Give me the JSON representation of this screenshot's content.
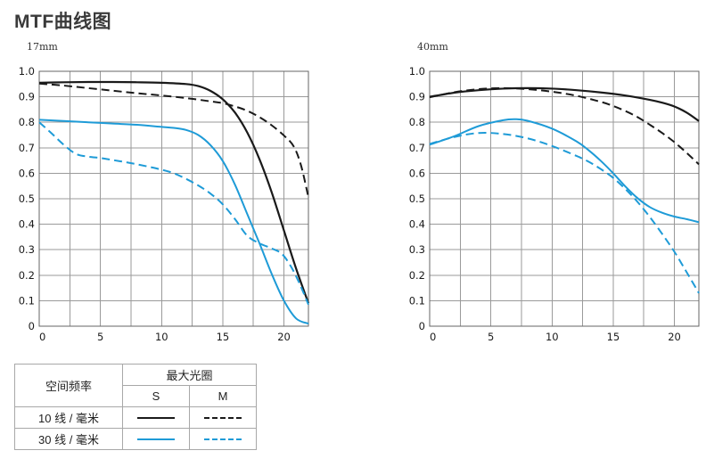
{
  "page": {
    "title": "MTF曲线图"
  },
  "colors": {
    "black": "#1a1a1a",
    "blue": "#1e9bd7",
    "grid": "#9a9a9a",
    "axis": "#666666"
  },
  "legend": {
    "col_header": "空间频率",
    "group_header": "最大光圈",
    "sub_headers": [
      "S",
      "M"
    ],
    "rows": [
      {
        "label": "10 线 / 毫米",
        "color": "#1a1a1a",
        "styles": [
          "solid",
          "dashed"
        ]
      },
      {
        "label": "30 线 / 毫米",
        "color": "#1e9bd7",
        "styles": [
          "solid",
          "dashed"
        ]
      }
    ]
  },
  "chart_data": [
    {
      "type": "line",
      "title": "17mm",
      "xlabel": "",
      "ylabel": "",
      "xlim": [
        0,
        22
      ],
      "ylim": [
        0,
        1.0
      ],
      "x_grid_step": 2.5,
      "y_grid_step": 0.1,
      "grid": true,
      "x_ticks": [
        0,
        5,
        10,
        15,
        20
      ],
      "x_tick_labels": [
        "0",
        "5",
        "10",
        "15",
        "20"
      ],
      "y_tick_labels": [
        "0",
        "0.1",
        "0.2",
        "0.3",
        "0.4",
        "0.5",
        "0.6",
        "0.7",
        "0.8",
        "0.9",
        "1.0"
      ],
      "series": [
        {
          "id": "s10",
          "name": "10线/毫米 S",
          "color": "#1a1a1a",
          "dash": false,
          "width": 2.2,
          "points": [
            [
              0,
              0.955
            ],
            [
              2,
              0.957
            ],
            [
              4,
              0.958
            ],
            [
              6,
              0.958
            ],
            [
              8,
              0.957
            ],
            [
              10,
              0.955
            ],
            [
              12,
              0.95
            ],
            [
              13,
              0.942
            ],
            [
              14,
              0.923
            ],
            [
              15,
              0.89
            ],
            [
              16,
              0.838
            ],
            [
              17,
              0.76
            ],
            [
              18,
              0.655
            ],
            [
              19,
              0.525
            ],
            [
              20,
              0.375
            ],
            [
              21,
              0.225
            ],
            [
              22,
              0.09
            ]
          ]
        },
        {
          "id": "m10",
          "name": "10线/毫米 M",
          "color": "#1a1a1a",
          "dash": true,
          "width": 2,
          "points": [
            [
              0,
              0.952
            ],
            [
              2,
              0.944
            ],
            [
              4,
              0.934
            ],
            [
              6,
              0.924
            ],
            [
              8,
              0.914
            ],
            [
              10,
              0.905
            ],
            [
              12,
              0.895
            ],
            [
              14,
              0.882
            ],
            [
              15,
              0.875
            ],
            [
              16,
              0.862
            ],
            [
              17,
              0.845
            ],
            [
              18,
              0.82
            ],
            [
              19,
              0.788
            ],
            [
              20,
              0.748
            ],
            [
              20.8,
              0.705
            ],
            [
              21.4,
              0.63
            ],
            [
              22,
              0.505
            ]
          ]
        },
        {
          "id": "s30",
          "name": "30线/毫米 S",
          "color": "#1e9bd7",
          "dash": false,
          "width": 2,
          "points": [
            [
              0,
              0.81
            ],
            [
              2,
              0.805
            ],
            [
              4,
              0.8
            ],
            [
              6,
              0.795
            ],
            [
              8,
              0.79
            ],
            [
              10,
              0.782
            ],
            [
              11,
              0.778
            ],
            [
              12,
              0.77
            ],
            [
              13,
              0.75
            ],
            [
              14,
              0.71
            ],
            [
              15,
              0.648
            ],
            [
              16,
              0.555
            ],
            [
              17,
              0.44
            ],
            [
              18,
              0.325
            ],
            [
              19,
              0.205
            ],
            [
              20,
              0.1
            ],
            [
              21,
              0.03
            ],
            [
              22,
              0.01
            ]
          ]
        },
        {
          "id": "m30",
          "name": "30线/毫米 M",
          "color": "#1e9bd7",
          "dash": true,
          "width": 2,
          "points": [
            [
              0,
              0.8
            ],
            [
              1,
              0.757
            ],
            [
              2,
              0.712
            ],
            [
              3,
              0.676
            ],
            [
              4,
              0.665
            ],
            [
              5,
              0.66
            ],
            [
              6,
              0.652
            ],
            [
              7,
              0.644
            ],
            [
              8,
              0.635
            ],
            [
              9,
              0.625
            ],
            [
              10,
              0.614
            ],
            [
              11,
              0.6
            ],
            [
              12,
              0.578
            ],
            [
              13,
              0.552
            ],
            [
              14,
              0.52
            ],
            [
              15,
              0.478
            ],
            [
              16,
              0.42
            ],
            [
              17,
              0.355
            ],
            [
              18,
              0.325
            ],
            [
              19,
              0.305
            ],
            [
              19.8,
              0.285
            ],
            [
              20.5,
              0.24
            ],
            [
              21.2,
              0.175
            ],
            [
              22,
              0.085
            ]
          ]
        }
      ]
    },
    {
      "type": "line",
      "title": "40mm",
      "xlabel": "",
      "ylabel": "",
      "xlim": [
        0,
        22
      ],
      "ylim": [
        0,
        1.0
      ],
      "x_grid_step": 2.5,
      "y_grid_step": 0.1,
      "grid": true,
      "x_ticks": [
        0,
        5,
        10,
        15,
        20
      ],
      "x_tick_labels": [
        "0",
        "5",
        "10",
        "15",
        "20"
      ],
      "y_tick_labels": [
        "0",
        "0.1",
        "0.2",
        "0.3",
        "0.4",
        "0.5",
        "0.6",
        "0.7",
        "0.8",
        "0.9",
        "1.0"
      ],
      "series": [
        {
          "id": "s10",
          "name": "10线/毫米 S",
          "color": "#1a1a1a",
          "dash": false,
          "width": 2.2,
          "points": [
            [
              0,
              0.9
            ],
            [
              2,
              0.916
            ],
            [
              4,
              0.926
            ],
            [
              6,
              0.932
            ],
            [
              8,
              0.934
            ],
            [
              10,
              0.932
            ],
            [
              12,
              0.926
            ],
            [
              14,
              0.917
            ],
            [
              16,
              0.905
            ],
            [
              18,
              0.888
            ],
            [
              19,
              0.877
            ],
            [
              20,
              0.862
            ],
            [
              21,
              0.838
            ],
            [
              22,
              0.805
            ]
          ]
        },
        {
          "id": "m10",
          "name": "10线/毫米 M",
          "color": "#1a1a1a",
          "dash": true,
          "width": 2,
          "points": [
            [
              0,
              0.898
            ],
            [
              2,
              0.918
            ],
            [
              4,
              0.93
            ],
            [
              6,
              0.934
            ],
            [
              8,
              0.93
            ],
            [
              10,
              0.92
            ],
            [
              12,
              0.904
            ],
            [
              14,
              0.88
            ],
            [
              15,
              0.864
            ],
            [
              16,
              0.844
            ],
            [
              17,
              0.82
            ],
            [
              18,
              0.79
            ],
            [
              19,
              0.758
            ],
            [
              20,
              0.722
            ],
            [
              21,
              0.68
            ],
            [
              22,
              0.635
            ]
          ]
        },
        {
          "id": "s30",
          "name": "30线/毫米 S",
          "color": "#1e9bd7",
          "dash": false,
          "width": 2,
          "points": [
            [
              0,
              0.712
            ],
            [
              2,
              0.745
            ],
            [
              4,
              0.785
            ],
            [
              6,
              0.808
            ],
            [
              7,
              0.812
            ],
            [
              8,
              0.806
            ],
            [
              10,
              0.775
            ],
            [
              12,
              0.725
            ],
            [
              13,
              0.69
            ],
            [
              14,
              0.648
            ],
            [
              15,
              0.6
            ],
            [
              16,
              0.548
            ],
            [
              17,
              0.502
            ],
            [
              18,
              0.467
            ],
            [
              19,
              0.445
            ],
            [
              20,
              0.43
            ],
            [
              21,
              0.42
            ],
            [
              22,
              0.408
            ]
          ]
        },
        {
          "id": "m30",
          "name": "30线/毫米 M",
          "color": "#1e9bd7",
          "dash": true,
          "width": 2,
          "points": [
            [
              0,
              0.715
            ],
            [
              2,
              0.742
            ],
            [
              4,
              0.758
            ],
            [
              6,
              0.754
            ],
            [
              8,
              0.737
            ],
            [
              10,
              0.707
            ],
            [
              12,
              0.668
            ],
            [
              13,
              0.645
            ],
            [
              14,
              0.616
            ],
            [
              15,
              0.582
            ],
            [
              16,
              0.538
            ],
            [
              17,
              0.487
            ],
            [
              18,
              0.428
            ],
            [
              19,
              0.362
            ],
            [
              20,
              0.292
            ],
            [
              21,
              0.212
            ],
            [
              22,
              0.13
            ]
          ]
        }
      ]
    }
  ]
}
